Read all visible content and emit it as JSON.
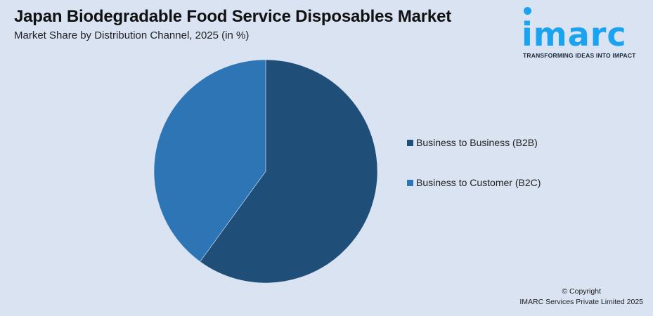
{
  "header": {
    "title": "Japan Biodegradable Food Service Disposables Market",
    "subtitle": "Market Share by Distribution Channel, 2025 (in %)"
  },
  "logo": {
    "name": "imarc",
    "tagline": "TRANSFORMING IDEAS INTO IMPACT",
    "color": "#1aa3f0"
  },
  "legend": {
    "items": [
      {
        "label": "Business to Business (B2B)",
        "color": "#1f4e79"
      },
      {
        "label": "Business to Customer (B2C)",
        "color": "#2e75b6"
      }
    ]
  },
  "footer": {
    "line1": "© Copyright",
    "line2": "IMARC Services Private Limited 2025"
  },
  "chart_data": {
    "type": "pie",
    "title": "Japan Biodegradable Food Service Disposables Market",
    "subtitle": "Market Share by Distribution Channel, 2025 (in %)",
    "categories": [
      "Business to Business (B2B)",
      "Business to Customer (B2C)"
    ],
    "values": [
      60,
      40
    ],
    "colors": [
      "#1f4e79",
      "#2e75b6"
    ],
    "start_angle": "12 o'clock, clockwise",
    "legend_position": "right",
    "data_labels": false
  }
}
